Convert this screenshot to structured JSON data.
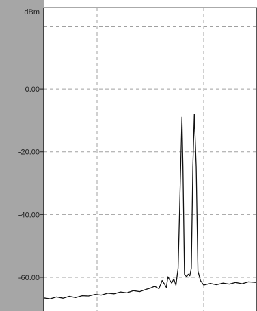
{
  "chart_data": {
    "type": "line",
    "ylabel": "dBm",
    "yticks": [
      {
        "value": 0,
        "label": "0.00"
      },
      {
        "value": -20,
        "label": "-20.00"
      },
      {
        "value": -40,
        "label": "-40.00"
      },
      {
        "value": -60,
        "label": "-60.00"
      }
    ],
    "ylim": [
      -70.7,
      26.0
    ],
    "xlim": [
      0,
      100
    ],
    "xgrid": [
      25,
      75
    ],
    "grid": true,
    "grid_style": "dashed",
    "series": [
      {
        "values_x": [
          0,
          3,
          6,
          9,
          12,
          15,
          18,
          21,
          24,
          27,
          30,
          33,
          36,
          39,
          42,
          45,
          48,
          50,
          52,
          54,
          55.5,
          56.5,
          57.5,
          58.2,
          59,
          60,
          61,
          62,
          63,
          64.2,
          64.8,
          65.3,
          66,
          67,
          67.8,
          68.5,
          69.2,
          69.9,
          70.6,
          71.5,
          72.3,
          73.5,
          75,
          78,
          81,
          84,
          87,
          90,
          93,
          96,
          100
        ],
        "values_y": [
          -66.5,
          -66.8,
          -66.2,
          -66.6,
          -66.0,
          -66.4,
          -65.8,
          -65.9,
          -65.4,
          -65.6,
          -65.0,
          -65.2,
          -64.6,
          -64.9,
          -64.2,
          -64.5,
          -63.8,
          -63.4,
          -62.8,
          -63.6,
          -61.0,
          -62.0,
          -63.2,
          -59.8,
          -60.8,
          -61.8,
          -60.5,
          -62.5,
          -57.0,
          -25.0,
          -9.0,
          -25.0,
          -59.0,
          -59.8,
          -59.0,
          -59.5,
          -57.0,
          -25.0,
          -8.0,
          -25.0,
          -58.0,
          -61.0,
          -62.4,
          -61.9,
          -62.3,
          -61.8,
          -62.1,
          -61.6,
          -62.0,
          -61.4,
          -61.6
        ],
        "color": "#111111"
      }
    ]
  },
  "colors": {
    "axis_band": "#a6a6a6",
    "plot_bg": "#ffffff",
    "grid": "#a0a0a0",
    "trace": "#111111"
  }
}
